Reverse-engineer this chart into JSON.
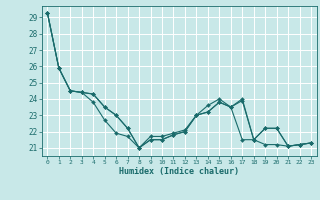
{
  "xlabel": "Humidex (Indice chaleur)",
  "background_color": "#c8e8e8",
  "grid_color": "#ffffff",
  "line_color": "#1a6b6b",
  "xlim": [
    -0.5,
    23.5
  ],
  "ylim": [
    20.5,
    29.7
  ],
  "yticks": [
    21,
    22,
    23,
    24,
    25,
    26,
    27,
    28,
    29
  ],
  "xticks": [
    0,
    1,
    2,
    3,
    4,
    5,
    6,
    7,
    8,
    9,
    10,
    11,
    12,
    13,
    14,
    15,
    16,
    17,
    18,
    19,
    20,
    21,
    22,
    23
  ],
  "series": [
    [
      29.3,
      25.9,
      24.5,
      24.4,
      23.8,
      22.7,
      21.9,
      21.7,
      21.0,
      21.7,
      21.7,
      21.9,
      22.1,
      23.0,
      23.6,
      24.0,
      23.5,
      23.9,
      21.5,
      21.2,
      21.2,
      21.1,
      21.2,
      21.3
    ],
    [
      29.3,
      25.9,
      24.5,
      24.4,
      24.3,
      23.5,
      23.0,
      22.2,
      21.0,
      21.5,
      21.5,
      21.8,
      22.0,
      23.0,
      23.2,
      23.8,
      23.5,
      21.5,
      21.5,
      22.2,
      22.2,
      21.1,
      21.2,
      21.3
    ],
    [
      29.3,
      25.9,
      24.5,
      24.4,
      24.3,
      23.5,
      23.0,
      22.2,
      21.0,
      21.5,
      21.5,
      21.8,
      22.0,
      23.0,
      23.2,
      23.8,
      23.5,
      24.0,
      21.5,
      22.2,
      22.2,
      21.1,
      21.2,
      21.3
    ]
  ]
}
